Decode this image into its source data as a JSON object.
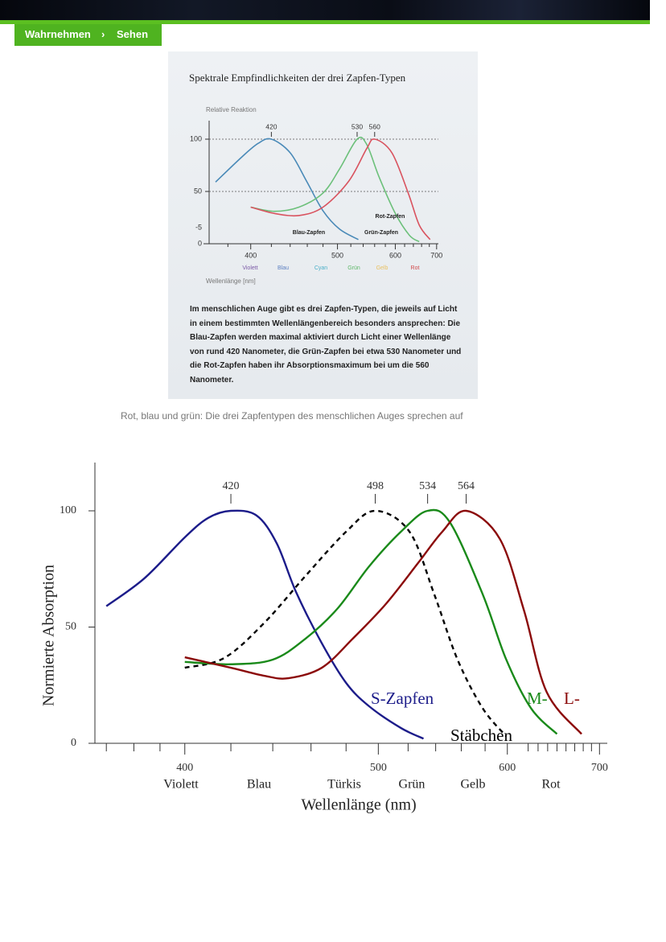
{
  "breadcrumb": {
    "items": [
      "Wahrnehmen",
      "Sehen"
    ]
  },
  "caption": "Rot, blau und grün: Die drei Zapfentypen des menschlichen Auges sprechen auf",
  "chart_data": [
    {
      "type": "line",
      "title": "Spektrale Empfindlichkeiten der drei Zapfen-Typen",
      "ylabel": "Relative Reaktion",
      "xlabel": "Wellenlänge [nm]",
      "xscale": "reciprocal",
      "xlim": [
        365,
        705
      ],
      "ylim": [
        0,
        115
      ],
      "xticks": [
        400,
        500,
        600,
        700
      ],
      "xminorticks": [
        380,
        420,
        440,
        460,
        480,
        520,
        540,
        560,
        580,
        620,
        640,
        660,
        680
      ],
      "yticks": [
        0,
        50,
        100
      ],
      "grid": true,
      "annotations": [
        "-5"
      ],
      "peaks": [
        420,
        530,
        560
      ],
      "series": [
        {
          "name": "Blau-Zapfen",
          "color": "#4a8ab8",
          "x": [
            370,
            392,
            407,
            420,
            440,
            459,
            480,
            503,
            532
          ],
          "values": [
            59,
            83,
            96,
            100,
            87,
            60,
            31.5,
            14,
            4
          ]
        },
        {
          "name": "Grün-Zapfen",
          "color": "#6cc07a",
          "x": [
            400,
            423,
            450,
            480,
            503,
            530,
            546,
            568,
            600,
            631,
            654
          ],
          "values": [
            35,
            31,
            35,
            48.5,
            71.5,
            100,
            95,
            64,
            29,
            8,
            2
          ]
        },
        {
          "name": "Rot-Zapfen",
          "color": "#d9535f",
          "x": [
            400,
            423,
            450,
            480,
            517,
            546,
            560,
            593,
            628,
            654,
            682
          ],
          "values": [
            35,
            29,
            27,
            35,
            60,
            91,
            100,
            87,
            48.5,
            18,
            4
          ]
        }
      ],
      "band_labels": [
        {
          "label": "Violett",
          "color": "#7b5aa6"
        },
        {
          "label": "Blau",
          "color": "#5b7fc0"
        },
        {
          "label": "Cyan",
          "color": "#4cb0c8"
        },
        {
          "label": "Grün",
          "color": "#5fb86a"
        },
        {
          "label": "Gelb",
          "color": "#e9c160"
        },
        {
          "label": "Rot",
          "color": "#d24a4a"
        }
      ],
      "description": "Im menschlichen Auge gibt es drei Zapfen-Typen, die jeweils auf Licht in einem bestimmten Wellenlängenbereich besonders ansprechen: Die Blau-Zapfen werden maximal aktiviert durch Licht einer Wellenlänge von rund 420 Nanometer, die Grün-Zapfen bei etwa 530 Nanometer und die Rot-Zapfen haben ihr Absorptionsmaximum bei um die 560 Nanometer."
    },
    {
      "type": "line",
      "ylabel": "Normierte Absorption",
      "xlabel": "Wellenlänge (nm)",
      "xscale": "reciprocal",
      "xlim": [
        366,
        710
      ],
      "ylim": [
        0,
        120
      ],
      "xticks": [
        400,
        500,
        600,
        700
      ],
      "xminorticks": [
        370,
        380,
        390,
        420,
        440,
        460,
        480,
        520,
        540,
        560,
        580,
        620,
        630,
        640,
        650,
        660,
        670,
        680,
        690
      ],
      "yticks": [
        0,
        50,
        100
      ],
      "grid": false,
      "peaks": [
        420,
        498,
        534,
        564
      ],
      "series": [
        {
          "name": "S-Zapfen",
          "color": "#1c1c8a",
          "line_style": "solid",
          "x": [
            370,
            384,
            400,
            410,
            420,
            432,
            442,
            452,
            466,
            480,
            494,
            515,
            531
          ],
          "values": [
            59,
            71,
            88.6,
            97,
            100,
            98,
            86,
            65,
            43,
            26,
            16,
            6.6,
            2
          ]
        },
        {
          "name": "Stäbchen",
          "color": "#000000",
          "line_style": "dashed",
          "x": [
            400,
            417,
            436,
            457,
            480,
            498,
            521,
            539,
            557,
            578,
            599
          ],
          "values": [
            32.5,
            36.7,
            52,
            72,
            91,
            100,
            91,
            64,
            36,
            15,
            3
          ]
        },
        {
          "name": "M-",
          "color": "#1a8a1a",
          "line_style": "solid",
          "x": [
            400,
            420,
            440,
            457,
            475,
            494,
            515,
            534,
            551,
            578,
            599,
            623,
            650
          ],
          "values": [
            35,
            34,
            36,
            45,
            58,
            76,
            91,
            100,
            95,
            64,
            36,
            15,
            4
          ]
        },
        {
          "name": "L-",
          "color": "#8b0a0a",
          "line_style": "solid",
          "x": [
            400,
            420,
            436,
            448,
            466,
            484,
            505,
            527,
            545,
            564,
            593,
            616,
            639,
            678
          ],
          "values": [
            37,
            32.5,
            29,
            28,
            32.5,
            45,
            60,
            77.5,
            91,
            100,
            88,
            57,
            22,
            4
          ]
        }
      ],
      "band_labels": [
        {
          "label": "Violett"
        },
        {
          "label": "Blau"
        },
        {
          "label": "Türkis"
        },
        {
          "label": "Grün"
        },
        {
          "label": "Gelb"
        },
        {
          "label": "Rot"
        }
      ]
    }
  ]
}
